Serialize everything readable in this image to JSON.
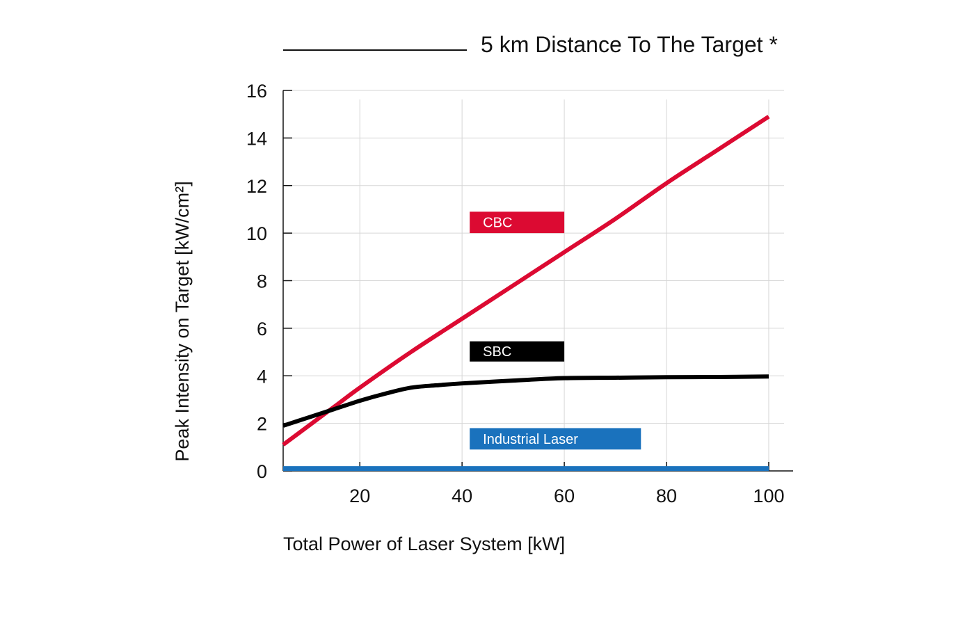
{
  "colors": {
    "cbc": "#dc0a32",
    "sbc": "#000000",
    "industrial": "#1a72bd",
    "grid": "#d6d6d6",
    "axis": "#111111"
  },
  "chart_data": {
    "type": "line",
    "title": "5 km Distance To The Target *",
    "xlabel": "Total Power of Laser System [kW]",
    "ylabel": "Peak Intensity on Target [kW/cm²]",
    "xlim": [
      5,
      103
    ],
    "ylim": [
      0,
      16
    ],
    "xticks": [
      20,
      40,
      60,
      80,
      100
    ],
    "yticks": [
      0,
      2,
      4,
      6,
      8,
      10,
      12,
      14,
      16
    ],
    "grid": true,
    "series": [
      {
        "name": "CBC",
        "color": "#dc0a32",
        "x": [
          5,
          10,
          15,
          20,
          30,
          40,
          50,
          60,
          70,
          80,
          90,
          100
        ],
        "y": [
          1.1,
          1.9,
          2.7,
          3.5,
          5.0,
          6.4,
          7.8,
          9.2,
          10.6,
          12.1,
          13.5,
          14.9
        ]
      },
      {
        "name": "SBC",
        "color": "#000000",
        "x": [
          5,
          10,
          15,
          20,
          25,
          30,
          35,
          40,
          50,
          60,
          70,
          80,
          90,
          100
        ],
        "y": [
          1.9,
          2.25,
          2.6,
          2.95,
          3.25,
          3.5,
          3.6,
          3.68,
          3.8,
          3.9,
          3.92,
          3.94,
          3.95,
          3.97
        ]
      },
      {
        "name": "Industrial Laser",
        "color": "#1a72bd",
        "x": [
          5,
          100
        ],
        "y": [
          0.1,
          0.1
        ]
      }
    ],
    "legend": [
      {
        "name": "CBC",
        "color": "#dc0a32",
        "x_from": 41.5,
        "x_to": 60,
        "y_from": 10.0,
        "y_to": 10.9
      },
      {
        "name": "SBC",
        "color": "#000000",
        "x_from": 41.5,
        "x_to": 60,
        "y_from": 4.6,
        "y_to": 5.45
      },
      {
        "name": "Industrial Laser",
        "color": "#1a72bd",
        "x_from": 41.5,
        "x_to": 75,
        "y_from": 0.9,
        "y_to": 1.8
      }
    ]
  }
}
